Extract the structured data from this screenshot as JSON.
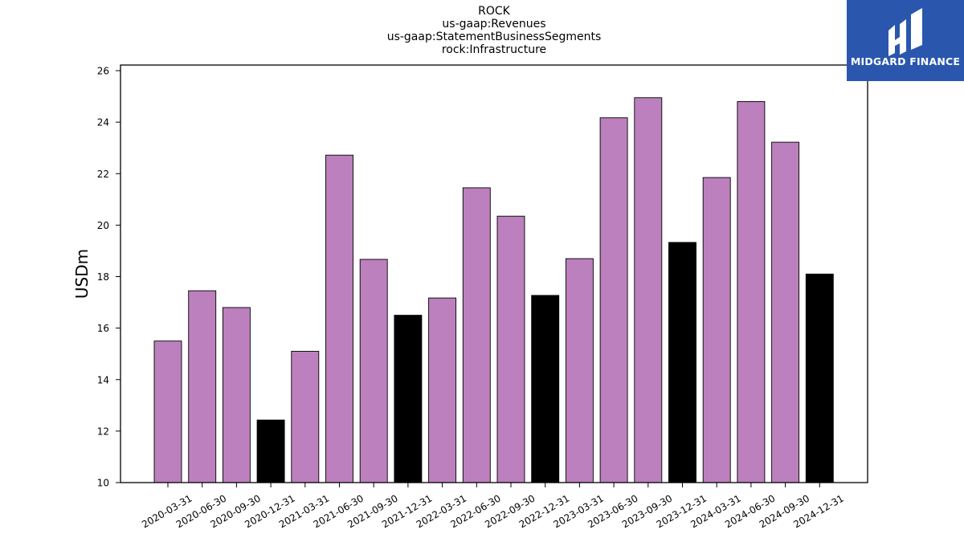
{
  "brand": {
    "name": "MIDGARD FINANCE",
    "color": "#2a57ad"
  },
  "colors": {
    "quarter_bar": "#bb80bd",
    "year_end_bar": "#000000"
  },
  "chart_data": {
    "type": "bar",
    "title_lines": [
      "ROCK",
      "us-gaap:Revenues",
      "us-gaap:StatementBusinessSegments",
      "rock:Infrastructure"
    ],
    "ylabel": "USDm",
    "xlabel": "",
    "ylim": [
      10,
      26
    ],
    "yticks": [
      10,
      12,
      14,
      16,
      18,
      20,
      22,
      24,
      26
    ],
    "grid": false,
    "categories": [
      "2020-03-31",
      "2020-06-30",
      "2020-09-30",
      "2020-12-31",
      "2021-03-31",
      "2021-06-30",
      "2021-09-30",
      "2021-12-31",
      "2022-03-31",
      "2022-06-30",
      "2022-09-30",
      "2022-12-31",
      "2023-03-31",
      "2023-06-30",
      "2023-09-30",
      "2023-12-31",
      "2024-03-31",
      "2024-06-30",
      "2024-09-30",
      "2024-12-31"
    ],
    "values": [
      15.5,
      17.45,
      16.8,
      12.43,
      15.1,
      22.72,
      18.67,
      16.5,
      17.17,
      21.45,
      20.35,
      17.27,
      18.7,
      24.17,
      24.95,
      19.33,
      21.85,
      24.8,
      23.22,
      18.1
    ],
    "highlighted": [
      false,
      false,
      false,
      true,
      false,
      false,
      false,
      true,
      false,
      false,
      false,
      true,
      false,
      false,
      false,
      true,
      false,
      false,
      false,
      true
    ]
  }
}
